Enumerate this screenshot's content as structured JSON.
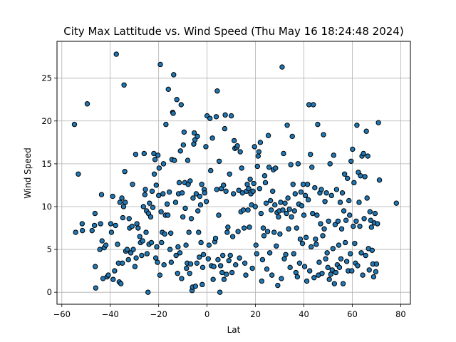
{
  "chart_data": {
    "type": "scatter",
    "title": "City Max Lattitude vs. Wind Speed (Thu May 16 18:24:48 2024)",
    "xlabel": "Lat",
    "ylabel": "Wind Speed",
    "xlim": [
      -62,
      84
    ],
    "ylim": [
      -1.4,
      29.3
    ],
    "xticks": [
      -60,
      -40,
      -20,
      0,
      20,
      40,
      60,
      80
    ],
    "yticks": [
      0,
      5,
      10,
      15,
      20,
      25
    ],
    "grid": true,
    "marker_color": "#1f77b4",
    "marker_edge": "#000000",
    "points": [
      [
        -54.8,
        19.6
      ],
      [
        -54.3,
        7.0
      ],
      [
        -53.2,
        13.8
      ],
      [
        -51.6,
        8.0
      ],
      [
        -51.5,
        7.2
      ],
      [
        -49.5,
        22.0
      ],
      [
        -47.5,
        7.2
      ],
      [
        -46.5,
        7.8
      ],
      [
        -46.3,
        9.2
      ],
      [
        -46.2,
        3.0
      ],
      [
        -46.0,
        0.5
      ],
      [
        -44.3,
        5.0
      ],
      [
        -44.0,
        8.0
      ],
      [
        -43.6,
        11.4
      ],
      [
        -43.4,
        6.0
      ],
      [
        -43.0,
        1.6
      ],
      [
        -42.5,
        5.2
      ],
      [
        -41.8,
        5.5
      ],
      [
        -41.3,
        1.8
      ],
      [
        -40.8,
        2.0
      ],
      [
        -39.8,
        8.0
      ],
      [
        -39.5,
        7.0
      ],
      [
        -39.0,
        11.2
      ],
      [
        -38.8,
        1.5
      ],
      [
        -38.2,
        2.5
      ],
      [
        -37.8,
        7.8
      ],
      [
        -37.5,
        27.8
      ],
      [
        -37.0,
        5.6
      ],
      [
        -36.6,
        3.4
      ],
      [
        -36.3,
        1.2
      ],
      [
        -36.0,
        10.5
      ],
      [
        -35.6,
        1.0
      ],
      [
        -35.2,
        11.0
      ],
      [
        -35.0,
        3.4
      ],
      [
        -34.8,
        8.7
      ],
      [
        -34.5,
        10.0
      ],
      [
        -34.3,
        24.2
      ],
      [
        -34.0,
        14.1
      ],
      [
        -33.8,
        10.5
      ],
      [
        -33.6,
        4.8
      ],
      [
        -33.0,
        5.0
      ],
      [
        -32.5,
        3.8
      ],
      [
        -32.2,
        8.6
      ],
      [
        -32.0,
        7.5
      ],
      [
        -31.5,
        4.6
      ],
      [
        -31.0,
        7.7
      ],
      [
        -30.8,
        12.6
      ],
      [
        -30.5,
        5.0
      ],
      [
        -29.8,
        3.0
      ],
      [
        -29.5,
        16.1
      ],
      [
        -29.3,
        4.0
      ],
      [
        -29.0,
        8.0
      ],
      [
        -28.5,
        7.5
      ],
      [
        -27.8,
        6.5
      ],
      [
        -27.5,
        5.8
      ],
      [
        -27.0,
        4.3
      ],
      [
        -26.6,
        6.0
      ],
      [
        -26.3,
        10.0
      ],
      [
        -26.0,
        16.2
      ],
      [
        -25.7,
        11.4
      ],
      [
        -25.5,
        12.0
      ],
      [
        -25.2,
        7.0
      ],
      [
        -25.0,
        9.5
      ],
      [
        -24.8,
        4.5
      ],
      [
        -24.4,
        0.0
      ],
      [
        -24.2,
        9.2
      ],
      [
        -24.0,
        5.6
      ],
      [
        -23.8,
        10.4
      ],
      [
        -23.3,
        8.8
      ],
      [
        -23.0,
        5.8
      ],
      [
        -22.7,
        11.8
      ],
      [
        -22.4,
        9.9
      ],
      [
        -22.0,
        16.2
      ],
      [
        -21.8,
        13.8
      ],
      [
        -21.5,
        15.5
      ],
      [
        -21.2,
        4.0
      ],
      [
        -21.0,
        12.5
      ],
      [
        -20.8,
        5.3
      ],
      [
        -20.5,
        3.5
      ],
      [
        -20.3,
        16.0
      ],
      [
        -20.0,
        11.3
      ],
      [
        -19.8,
        14.5
      ],
      [
        -19.5,
        2.0
      ],
      [
        -19.3,
        26.6
      ],
      [
        -19.0,
        9.4
      ],
      [
        -18.8,
        5.8
      ],
      [
        -18.5,
        7.0
      ],
      [
        -18.2,
        11.5
      ],
      [
        -18.0,
        15.0
      ],
      [
        -17.8,
        3.2
      ],
      [
        -17.5,
        6.8
      ],
      [
        -17.2,
        9.0
      ],
      [
        -17.0,
        19.6
      ],
      [
        -16.5,
        10.3
      ],
      [
        -16.2,
        9.0
      ],
      [
        -16.0,
        23.7
      ],
      [
        -15.6,
        11.7
      ],
      [
        -15.3,
        5.0
      ],
      [
        -15.0,
        6.9
      ],
      [
        -14.8,
        3.5
      ],
      [
        -14.5,
        15.5
      ],
      [
        -14.2,
        21.0
      ],
      [
        -14.0,
        20.9
      ],
      [
        -13.8,
        25.4
      ],
      [
        -13.5,
        15.4
      ],
      [
        -13.0,
        10.5
      ],
      [
        -12.8,
        4.3
      ],
      [
        -12.5,
        22.5
      ],
      [
        -12.2,
        2.2
      ],
      [
        -12.0,
        5.3
      ],
      [
        -11.8,
        11.5
      ],
      [
        -11.5,
        12.8
      ],
      [
        -11.2,
        4.6
      ],
      [
        -11.0,
        16.5
      ],
      [
        -10.7,
        21.9
      ],
      [
        -10.5,
        1.6
      ],
      [
        -10.3,
        11.6
      ],
      [
        -10.0,
        8.8
      ],
      [
        -9.8,
        17.2
      ],
      [
        -9.5,
        18.7
      ],
      [
        -9.2,
        12.8
      ],
      [
        -9.0,
        9.8
      ],
      [
        -8.7,
        5.5
      ],
      [
        -8.5,
        2.8
      ],
      [
        -8.2,
        3.4
      ],
      [
        -8.0,
        15.4
      ],
      [
        -7.8,
        12.6
      ],
      [
        -7.5,
        7.0
      ],
      [
        -7.2,
        2.2
      ],
      [
        -7.0,
        13.0
      ],
      [
        -6.8,
        3.3
      ],
      [
        -6.5,
        8.6
      ],
      [
        -6.2,
        0.2
      ],
      [
        -6.0,
        0.6
      ],
      [
        -5.8,
        11.0
      ],
      [
        -5.5,
        17.3
      ],
      [
        -5.3,
        18.6
      ],
      [
        -5.0,
        17.8
      ],
      [
        -4.8,
        0.7
      ],
      [
        -4.5,
        11.5
      ],
      [
        -4.2,
        3.4
      ],
      [
        -4.0,
        18.2
      ],
      [
        -3.8,
        9.5
      ],
      [
        -3.5,
        7.0
      ],
      [
        -3.2,
        4.1
      ],
      [
        -3.0,
        11.2
      ],
      [
        -2.7,
        10.2
      ],
      [
        -2.5,
        5.8
      ],
      [
        -2.2,
        12.6
      ],
      [
        -2.0,
        0.9
      ],
      [
        -1.8,
        2.9
      ],
      [
        -1.5,
        4.4
      ],
      [
        -1.2,
        12.0
      ],
      [
        -1.0,
        11.6
      ],
      [
        -0.5,
        17.0
      ],
      [
        -0.3,
        10.6
      ],
      [
        0.0,
        20.6
      ],
      [
        0.5,
        3.9
      ],
      [
        0.8,
        5.5
      ],
      [
        1.2,
        20.3
      ],
      [
        1.5,
        14.2
      ],
      [
        1.8,
        3.1
      ],
      [
        2.2,
        18.0
      ],
      [
        2.5,
        1.5
      ],
      [
        2.8,
        3.0
      ],
      [
        3.2,
        5.9
      ],
      [
        3.5,
        6.3
      ],
      [
        3.8,
        20.5
      ],
      [
        4.0,
        12.0
      ],
      [
        4.2,
        23.5
      ],
      [
        4.5,
        3.8
      ],
      [
        4.8,
        9.0
      ],
      [
        5.0,
        15.3
      ],
      [
        5.3,
        0.0
      ],
      [
        5.6,
        3.1
      ],
      [
        5.9,
        12.1
      ],
      [
        6.2,
        2.3
      ],
      [
        6.5,
        4.3
      ],
      [
        6.8,
        12.5
      ],
      [
        7.0,
        1.5
      ],
      [
        7.3,
        19.1
      ],
      [
        7.5,
        20.7
      ],
      [
        7.8,
        11.8
      ],
      [
        8.0,
        2.1
      ],
      [
        8.3,
        7.0
      ],
      [
        8.6,
        7.6
      ],
      [
        9.0,
        3.7
      ],
      [
        9.3,
        13.8
      ],
      [
        9.6,
        4.3
      ],
      [
        10.0,
        20.6
      ],
      [
        10.3,
        2.3
      ],
      [
        10.6,
        6.5
      ],
      [
        10.9,
        11.5
      ],
      [
        11.2,
        17.7
      ],
      [
        11.5,
        16.8
      ],
      [
        11.8,
        3.2
      ],
      [
        12.2,
        16.9
      ],
      [
        12.5,
        17.1
      ],
      [
        12.8,
        7.1
      ],
      [
        13.1,
        11.9
      ],
      [
        13.4,
        4.0
      ],
      [
        13.7,
        16.4
      ],
      [
        14.0,
        9.4
      ],
      [
        14.3,
        14.5
      ],
      [
        14.6,
        11.6
      ],
      [
        15.0,
        9.6
      ],
      [
        15.3,
        7.5
      ],
      [
        15.6,
        3.4
      ],
      [
        16.0,
        2.0
      ],
      [
        16.3,
        11.8
      ],
      [
        16.6,
        12.6
      ],
      [
        16.9,
        9.6
      ],
      [
        17.2,
        12.1
      ],
      [
        17.5,
        7.6
      ],
      [
        17.8,
        13.2
      ],
      [
        18.1,
        11.5
      ],
      [
        18.4,
        10.2
      ],
      [
        18.7,
        2.8
      ],
      [
        19.0,
        11.8
      ],
      [
        19.3,
        12.7
      ],
      [
        19.6,
        17.0
      ],
      [
        19.9,
        10.0
      ],
      [
        20.2,
        5.5
      ],
      [
        20.5,
        4.5
      ],
      [
        20.8,
        14.7
      ],
      [
        21.1,
        15.9
      ],
      [
        21.4,
        16.4
      ],
      [
        21.7,
        12.1
      ],
      [
        22.0,
        17.5
      ],
      [
        22.3,
        9.2
      ],
      [
        22.6,
        1.3
      ],
      [
        22.9,
        3.8
      ],
      [
        23.2,
        7.5
      ],
      [
        23.5,
        6.6
      ],
      [
        23.8,
        13.6
      ],
      [
        24.1,
        12.8
      ],
      [
        24.4,
        10.4
      ],
      [
        24.7,
        2.7
      ],
      [
        25.0,
        7.1
      ],
      [
        25.3,
        18.3
      ],
      [
        25.6,
        14.6
      ],
      [
        25.9,
        4.6
      ],
      [
        26.2,
        10.7
      ],
      [
        26.5,
        9.6
      ],
      [
        26.8,
        2.0
      ],
      [
        27.1,
        11.8
      ],
      [
        27.4,
        14.3
      ],
      [
        27.7,
        7.0
      ],
      [
        28.0,
        10.2
      ],
      [
        28.3,
        14.5
      ],
      [
        28.6,
        5.4
      ],
      [
        28.9,
        9.3
      ],
      [
        29.2,
        0.8
      ],
      [
        29.5,
        8.8
      ],
      [
        29.8,
        9.5
      ],
      [
        30.1,
        6.8
      ],
      [
        30.4,
        10.5
      ],
      [
        30.7,
        1.6
      ],
      [
        31.0,
        26.3
      ],
      [
        31.3,
        9.6
      ],
      [
        31.6,
        16.2
      ],
      [
        31.9,
        3.9
      ],
      [
        32.2,
        10.4
      ],
      [
        32.5,
        4.4
      ],
      [
        32.8,
        9.2
      ],
      [
        33.1,
        19.5
      ],
      [
        33.4,
        11.0
      ],
      [
        33.7,
        7.4
      ],
      [
        34.0,
        9.7
      ],
      [
        34.3,
        2.9
      ],
      [
        34.6,
        14.9
      ],
      [
        34.9,
        8.8
      ],
      [
        35.2,
        18.2
      ],
      [
        35.5,
        12.6
      ],
      [
        35.8,
        4.5
      ],
      [
        36.1,
        9.5
      ],
      [
        36.4,
        11.5
      ],
      [
        36.7,
        2.3
      ],
      [
        37.0,
        7.5
      ],
      [
        37.3,
        1.8
      ],
      [
        37.6,
        15.0
      ],
      [
        37.9,
        10.3
      ],
      [
        38.2,
        3.4
      ],
      [
        38.5,
        6.2
      ],
      [
        38.8,
        11.7
      ],
      [
        39.1,
        10.1
      ],
      [
        39.4,
        5.7
      ],
      [
        39.7,
        12.6
      ],
      [
        40.0,
        9.0
      ],
      [
        40.3,
        3.0
      ],
      [
        40.6,
        11.3
      ],
      [
        40.9,
        6.4
      ],
      [
        41.2,
        1.3
      ],
      [
        41.5,
        12.6
      ],
      [
        41.8,
        10.8
      ],
      [
        42.1,
        21.9
      ],
      [
        42.4,
        2.5
      ],
      [
        42.7,
        16.1
      ],
      [
        43.0,
        5.3
      ],
      [
        43.3,
        14.6
      ],
      [
        43.6,
        9.2
      ],
      [
        43.9,
        21.9
      ],
      [
        44.2,
        1.7
      ],
      [
        44.5,
        12.2
      ],
      [
        44.8,
        6.2
      ],
      [
        45.1,
        5.6
      ],
      [
        45.4,
        9.0
      ],
      [
        45.7,
        19.6
      ],
      [
        46.0,
        2.0
      ],
      [
        46.3,
        3.5
      ],
      [
        46.6,
        11.6
      ],
      [
        46.9,
        8.0
      ],
      [
        47.2,
        12.0
      ],
      [
        47.5,
        2.2
      ],
      [
        47.8,
        6.6
      ],
      [
        48.1,
        18.4
      ],
      [
        48.4,
        7.4
      ],
      [
        48.7,
        10.6
      ],
      [
        49.0,
        3.9
      ],
      [
        49.3,
        11.6
      ],
      [
        49.6,
        4.6
      ],
      [
        49.9,
        2.9
      ],
      [
        50.2,
        8.3
      ],
      [
        50.5,
        1.5
      ],
      [
        50.8,
        15.0
      ],
      [
        51.1,
        2.1
      ],
      [
        51.4,
        11.3
      ],
      [
        51.7,
        2.6
      ],
      [
        52.0,
        5.1
      ],
      [
        52.3,
        16.0
      ],
      [
        52.6,
        1.0
      ],
      [
        52.9,
        7.9
      ],
      [
        53.2,
        2.3
      ],
      [
        53.5,
        12.0
      ],
      [
        53.8,
        3.2
      ],
      [
        54.1,
        8.3
      ],
      [
        54.4,
        5.5
      ],
      [
        54.7,
        2.9
      ],
      [
        55.0,
        10.5
      ],
      [
        55.3,
        3.9
      ],
      [
        55.6,
        7.4
      ],
      [
        55.9,
        11.6
      ],
      [
        56.2,
        1.0
      ],
      [
        56.5,
        9.5
      ],
      [
        56.8,
        13.8
      ],
      [
        57.1,
        5.8
      ],
      [
        57.4,
        8.4
      ],
      [
        57.7,
        3.6
      ],
      [
        58.0,
        13.3
      ],
      [
        58.3,
        2.5
      ],
      [
        58.6,
        10.7
      ],
      [
        58.9,
        9.0
      ],
      [
        59.2,
        4.5
      ],
      [
        59.5,
        15.3
      ],
      [
        59.8,
        2.5
      ],
      [
        60.1,
        16.7
      ],
      [
        60.4,
        7.7
      ],
      [
        60.7,
        12.8
      ],
      [
        61.0,
        5.7
      ],
      [
        61.3,
        3.4
      ],
      [
        61.6,
        8.3
      ],
      [
        61.9,
        19.5
      ],
      [
        62.2,
        3.1
      ],
      [
        62.5,
        14.0
      ],
      [
        62.8,
        10.5
      ],
      [
        63.1,
        7.7
      ],
      [
        63.4,
        13.6
      ],
      [
        63.7,
        4.6
      ],
      [
        64.0,
        15.9
      ],
      [
        64.3,
        2.0
      ],
      [
        64.6,
        16.2
      ],
      [
        64.9,
        8.6
      ],
      [
        65.2,
        13.5
      ],
      [
        65.5,
        4.3
      ],
      [
        65.8,
        18.8
      ],
      [
        66.1,
        11.0
      ],
      [
        66.4,
        15.9
      ],
      [
        66.7,
        5.1
      ],
      [
        67.0,
        2.6
      ],
      [
        67.3,
        9.4
      ],
      [
        67.6,
        8.4
      ],
      [
        67.9,
        7.6
      ],
      [
        68.2,
        4.9
      ],
      [
        68.5,
        3.3
      ],
      [
        68.8,
        1.8
      ],
      [
        69.1,
        8.1
      ],
      [
        69.4,
        9.2
      ],
      [
        69.7,
        2.4
      ],
      [
        70.0,
        3.3
      ],
      [
        70.4,
        8.0
      ],
      [
        70.8,
        19.8
      ],
      [
        71.2,
        13.1
      ],
      [
        78.2,
        10.4
      ]
    ]
  }
}
